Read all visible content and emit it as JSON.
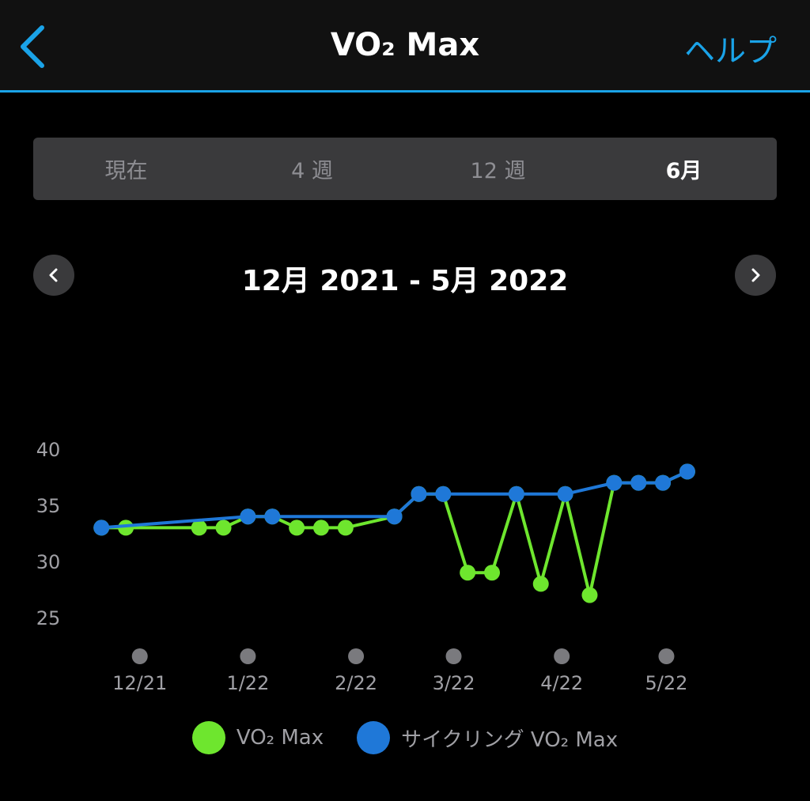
{
  "header": {
    "back_icon": "chevron-left-icon",
    "title": "VO₂ Max",
    "help_label": "ヘルプ"
  },
  "tabs": [
    {
      "label": "現在",
      "active": false
    },
    {
      "label": "4 週",
      "active": false
    },
    {
      "label": "12 週",
      "active": false
    },
    {
      "label": "6月",
      "active": true
    }
  ],
  "range": {
    "label": "12月 2021 - 5月 2022",
    "prev_icon": "chevron-left-icon",
    "next_icon": "chevron-right-icon"
  },
  "colors": {
    "accent": "#1aa3e8",
    "vo2_max": "#6ee62e",
    "cycling_vo2_max": "#1f78d8",
    "axis_text": "#a0a0a5",
    "month_marker": "#7a7a7e"
  },
  "chart_data": {
    "type": "line",
    "ylim": [
      25,
      40
    ],
    "yticks": [
      "40",
      "35",
      "30",
      "25"
    ],
    "xlim": [
      "2021-12-01",
      "2022-05-31"
    ],
    "x_tick_labels": [
      "12/21",
      "1/22",
      "2/22",
      "3/22",
      "4/22",
      "5/22"
    ],
    "x_tick_dates": [
      "2021-12-15",
      "2022-01-15",
      "2022-02-15",
      "2022-03-15",
      "2022-04-15",
      "2022-05-15"
    ],
    "grid": false,
    "legend_position": "bottom-center",
    "series": [
      {
        "name": "VO₂ Max",
        "color_key": "vo2_max",
        "points": [
          [
            "2021-12-04",
            33
          ],
          [
            "2021-12-11",
            33
          ],
          [
            "2022-01-01",
            33
          ],
          [
            "2022-01-08",
            33
          ],
          [
            "2022-01-15",
            34
          ],
          [
            "2022-01-22",
            34
          ],
          [
            "2022-01-29",
            33
          ],
          [
            "2022-02-05",
            33
          ],
          [
            "2022-02-12",
            33
          ],
          [
            "2022-02-26",
            34
          ],
          [
            "2022-03-05",
            36
          ],
          [
            "2022-03-12",
            36
          ],
          [
            "2022-03-19",
            29
          ],
          [
            "2022-03-26",
            29
          ],
          [
            "2022-04-02",
            36
          ],
          [
            "2022-04-09",
            28
          ],
          [
            "2022-04-16",
            36
          ],
          [
            "2022-04-23",
            27
          ],
          [
            "2022-04-30",
            37
          ],
          [
            "2022-05-07",
            37
          ],
          [
            "2022-05-14",
            37
          ],
          [
            "2022-05-21",
            38
          ]
        ]
      },
      {
        "name": "サイクリング VO₂ Max",
        "color_key": "cycling_vo2_max",
        "points": [
          [
            "2021-12-04",
            33
          ],
          [
            "2022-01-15",
            34
          ],
          [
            "2022-01-22",
            34
          ],
          [
            "2022-02-26",
            34
          ],
          [
            "2022-03-05",
            36
          ],
          [
            "2022-03-12",
            36
          ],
          [
            "2022-04-02",
            36
          ],
          [
            "2022-04-16",
            36
          ],
          [
            "2022-04-30",
            37
          ],
          [
            "2022-05-07",
            37
          ],
          [
            "2022-05-14",
            37
          ],
          [
            "2022-05-21",
            38
          ]
        ]
      }
    ]
  },
  "legend": [
    {
      "label": "VO₂ Max",
      "color_key": "vo2_max"
    },
    {
      "label": "サイクリング VO₂ Max",
      "color_key": "cycling_vo2_max"
    }
  ]
}
